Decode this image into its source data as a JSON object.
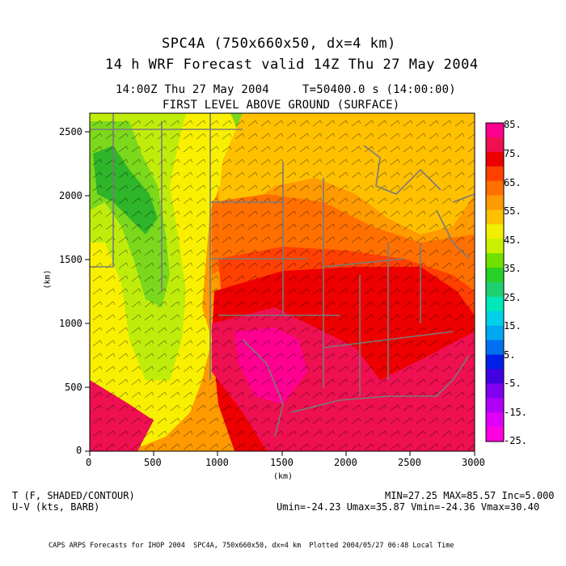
{
  "titles": {
    "title1": "SPC4A (750x660x50, dx=4 km)",
    "title2": "14 h WRF Forecast valid 14Z Thu 27 May 2004",
    "time_line_left": "14:00Z Thu 27 May 2004",
    "time_line_right": "T=50400.0 s (14:00:00)",
    "level": "FIRST LEVEL ABOVE GROUND (SURFACE)"
  },
  "axes": {
    "x_label": "(km)",
    "y_label": "(km)",
    "x_ticks": [
      "0",
      "500",
      "1000",
      "1500",
      "2000",
      "2500",
      "3000"
    ],
    "y_ticks": [
      "0",
      "500",
      "1000",
      "1500",
      "2000",
      "2500"
    ]
  },
  "colorbar": {
    "labels": [
      "85.",
      "75.",
      "65.",
      "55.",
      "45.",
      "35.",
      "25.",
      "15.",
      "5.",
      "-5.",
      "-15.",
      "-25."
    ],
    "colors": [
      "#ff0090",
      "#ee1050",
      "#ee0000",
      "#ff4000",
      "#ff7000",
      "#ff9a00",
      "#ffc000",
      "#f0f000",
      "#c8f000",
      "#70e000",
      "#28d028",
      "#20d070",
      "#00e8b8",
      "#00d0e8",
      "#00a8f0",
      "#0070f0",
      "#0020e8",
      "#4000e0",
      "#8000f0",
      "#b000f8",
      "#e000f8",
      "#ff00e0"
    ]
  },
  "footer": {
    "left1": "T (F, SHADED/CONTOUR)",
    "left2": "U-V (kts, BARB)",
    "right1": "MIN=27.25 MAX=85.57 Inc=5.000",
    "right2": "Umin=-24.23 Umax=35.87 Vmin=-24.36 Vmax=30.40",
    "credit": "CAPS ARPS Forecasts for IHOP 2004  SPC4A, 750x660x50, dx=4 km  Plotted 2004/05/27 06:48 Local Time"
  },
  "map_colors": {
    "green_dark": "#2fb52a",
    "green_light": "#7cd81c",
    "lime": "#c0ec0c",
    "yellow": "#f8f000",
    "gold": "#ffc000",
    "orange_light": "#ff9a00",
    "orange": "#ff7000",
    "red_orange": "#ff4000",
    "red": "#ee0000",
    "magenta_red": "#ee1050",
    "pink": "#ff0090",
    "border": "#7a7a7a"
  }
}
